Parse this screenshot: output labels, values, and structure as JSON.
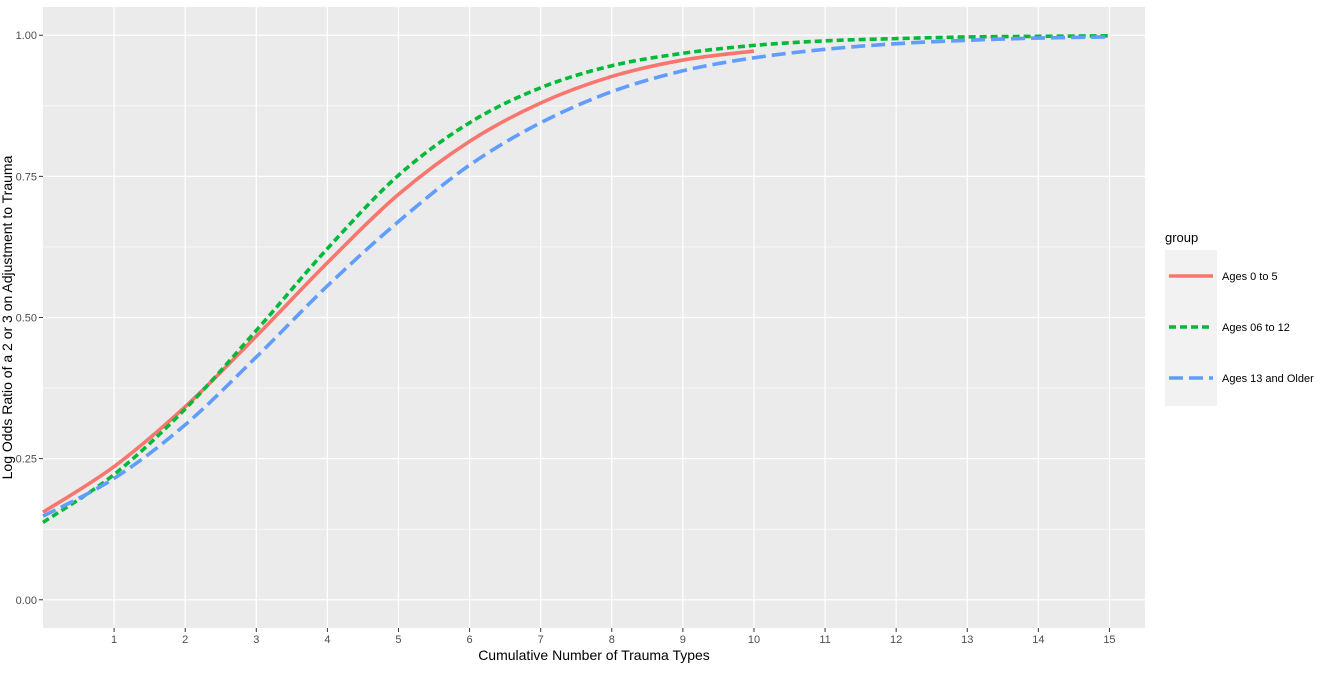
{
  "chart_data": {
    "type": "line",
    "title": "",
    "xlabel": "Cumulative Number of Trauma Types",
    "ylabel": "Log Odds Ratio of a 2 or 3 on Adjustment to Trauma",
    "xlim": [
      0,
      15.5
    ],
    "ylim": [
      -0.05,
      1.05
    ],
    "x_ticks": [
      1,
      2,
      3,
      4,
      5,
      6,
      7,
      8,
      9,
      10,
      11,
      12,
      13,
      14,
      15
    ],
    "x_tick_labels": [
      "1",
      "2",
      "3",
      "4",
      "5",
      "6",
      "7",
      "8",
      "9",
      "10",
      "11",
      "12",
      "13",
      "14",
      "15"
    ],
    "y_ticks": [
      0,
      0.25,
      0.5,
      0.75,
      1.0
    ],
    "y_tick_labels": [
      "0.00",
      "0.25",
      "0.50",
      "0.75",
      "1.00"
    ],
    "grid": true,
    "background": "#ebebeb",
    "legend": {
      "title": "group",
      "position": "right"
    },
    "series": [
      {
        "name": "Ages 0 to 5",
        "color": "#F8766D",
        "dash": "solid",
        "x": [
          0,
          1,
          2,
          3,
          4,
          5,
          6,
          7,
          8,
          9,
          10
        ],
        "y": [
          0.155,
          0.236,
          0.342,
          0.467,
          0.597,
          0.718,
          0.812,
          0.88,
          0.927,
          0.956,
          0.972
        ]
      },
      {
        "name": "Ages 06 to 12",
        "color": "#00BA38",
        "dash": "short",
        "x": [
          0,
          1,
          2,
          3,
          4,
          5,
          6,
          7,
          8,
          9,
          10,
          11,
          12,
          13,
          14,
          15
        ],
        "y": [
          0.137,
          0.222,
          0.338,
          0.477,
          0.622,
          0.752,
          0.845,
          0.907,
          0.946,
          0.968,
          0.982,
          0.99,
          0.994,
          0.997,
          0.998,
          0.999
        ]
      },
      {
        "name": "Ages 13 and Older",
        "color": "#619CFF",
        "dash": "long",
        "x": [
          0,
          1,
          2,
          3,
          4,
          5,
          6,
          7,
          8,
          9,
          10,
          11,
          12,
          13,
          14,
          15
        ],
        "y": [
          0.148,
          0.215,
          0.31,
          0.43,
          0.556,
          0.67,
          0.77,
          0.845,
          0.9,
          0.937,
          0.96,
          0.975,
          0.985,
          0.991,
          0.995,
          0.997
        ]
      }
    ]
  }
}
